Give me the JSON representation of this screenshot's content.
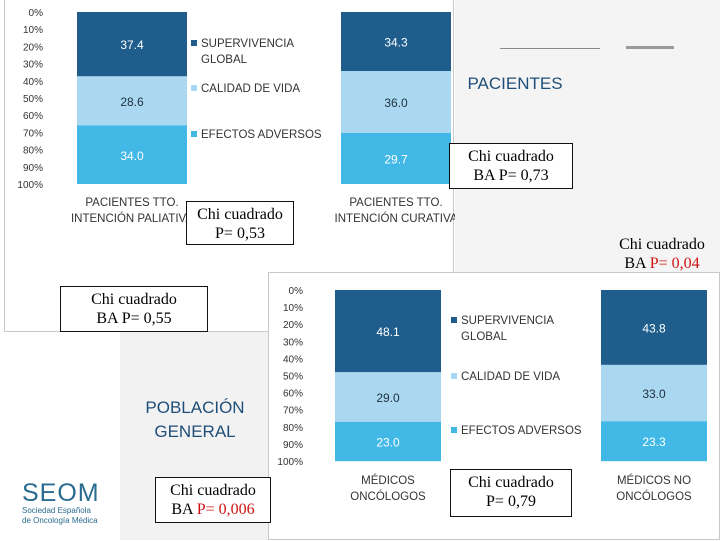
{
  "colors": {
    "supervivencia": "#1f5d8c",
    "calidad": "#a9d8f0",
    "efectos": "#42b8e6",
    "title": "#1f4e79",
    "red": "#d01010",
    "logo": "#2a6c8f"
  },
  "section_titles": {
    "pacientes": "PACIENTES",
    "poblacion": "POBLACIÓN GENERAL"
  },
  "stats": {
    "pac_total_label": "Chi cuadrado",
    "pac_total_value": "BA P= 0,73",
    "pac_paliativa_label": "Chi cuadrado",
    "pac_paliativa_value": "P= 0,53",
    "pac_curativa_label": "Chi cuadrado",
    "pac_curativa_prefix": "BA ",
    "pac_curativa_value": "P= 0,04",
    "pob_total_label": "Chi cuadrado",
    "pob_total_value": "BA P= 0,55",
    "pob_oncologos_label": "Chi cuadrado",
    "pob_oncologos_prefix": "BA ",
    "pob_oncologos_value": "P= 0,006",
    "pob_no_oncologos_label": "Chi cuadrado",
    "pob_no_oncologos_value": "P= 0,79"
  },
  "logo": {
    "name": "SEOM",
    "line1": "Sociedad Española",
    "line2": "de Oncología Médica"
  },
  "chart_data": [
    {
      "type": "bar",
      "stacked": true,
      "title": "PACIENTES",
      "ytick_labels": [
        "0%",
        "10%",
        "20%",
        "30%",
        "40%",
        "50%",
        "60%",
        "70%",
        "80%",
        "90%",
        "100%"
      ],
      "ylim": [
        0,
        100
      ],
      "categories": [
        [
          "PACIENTES TTO.",
          "INTENCIÓN PALIATIVA"
        ],
        [
          "PACIENTES TTO.",
          "INTENCIÓN CURATIVA"
        ]
      ],
      "series": [
        {
          "name": "SUPERVIVENCIA GLOBAL",
          "name_lines": [
            "SUPERVIVENCIA",
            "GLOBAL"
          ],
          "values": [
            37.4,
            34.3
          ],
          "labels": [
            "37.4",
            "34.3"
          ]
        },
        {
          "name": "CALIDAD DE VIDA",
          "name_lines": [
            "CALIDAD DE VIDA"
          ],
          "values": [
            28.6,
            36.0
          ],
          "labels": [
            "28.6",
            "36.0"
          ]
        },
        {
          "name": "EFECTOS ADVERSOS",
          "name_lines": [
            "EFECTOS ADVERSOS"
          ],
          "values": [
            34.0,
            29.7
          ],
          "labels": [
            "34.0",
            "29.7"
          ]
        }
      ]
    },
    {
      "type": "bar",
      "stacked": true,
      "title": "POBLACIÓN GENERAL",
      "ytick_labels": [
        "0%",
        "10%",
        "20%",
        "30%",
        "40%",
        "50%",
        "60%",
        "70%",
        "80%",
        "90%",
        "100%"
      ],
      "ylim": [
        0,
        100
      ],
      "categories": [
        [
          "MÉDICOS",
          "ONCÓLOGOS"
        ],
        [
          "MÉDICOS NO",
          "ONCÓLOGOS"
        ]
      ],
      "series": [
        {
          "name": "SUPERVIVENCIA GLOBAL",
          "name_lines": [
            "SUPERVIVENCIA",
            "GLOBAL"
          ],
          "values": [
            48.1,
            43.8
          ],
          "labels": [
            "48.1",
            "43.8"
          ]
        },
        {
          "name": "CALIDAD DE VIDA",
          "name_lines": [
            "CALIDAD DE VIDA"
          ],
          "values": [
            29.0,
            33.0
          ],
          "labels": [
            "29.0",
            "33.0"
          ]
        },
        {
          "name": "EFECTOS ADVERSOS",
          "name_lines": [
            "EFECTOS ADVERSOS"
          ],
          "values": [
            23.0,
            23.3
          ],
          "labels": [
            "23.0",
            "23.3"
          ]
        }
      ]
    }
  ]
}
